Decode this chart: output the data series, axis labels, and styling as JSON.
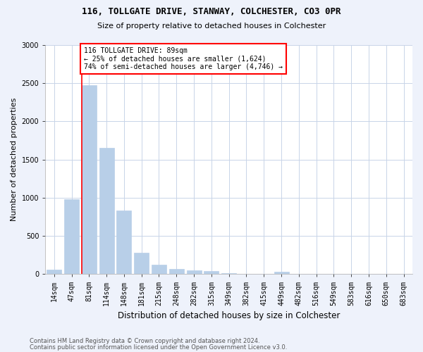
{
  "title1": "116, TOLLGATE DRIVE, STANWAY, COLCHESTER, CO3 0PR",
  "title2": "Size of property relative to detached houses in Colchester",
  "xlabel": "Distribution of detached houses by size in Colchester",
  "ylabel": "Number of detached properties",
  "categories": [
    "14sqm",
    "47sqm",
    "81sqm",
    "114sqm",
    "148sqm",
    "181sqm",
    "215sqm",
    "248sqm",
    "282sqm",
    "315sqm",
    "349sqm",
    "382sqm",
    "415sqm",
    "449sqm",
    "482sqm",
    "516sqm",
    "549sqm",
    "583sqm",
    "616sqm",
    "650sqm",
    "683sqm"
  ],
  "values": [
    60,
    980,
    2470,
    1650,
    830,
    280,
    125,
    65,
    50,
    40,
    10,
    0,
    0,
    30,
    0,
    0,
    0,
    0,
    0,
    0,
    0
  ],
  "bar_color": "#b8cfe8",
  "bar_edgecolor": "#b8cfe8",
  "highlight_index": 2,
  "annotation_line1": "116 TOLLGATE DRIVE: 89sqm",
  "annotation_line2": "← 25% of detached houses are smaller (1,624)",
  "annotation_line3": "74% of semi-detached houses are larger (4,746) →",
  "annotation_box_color": "white",
  "annotation_box_edgecolor": "red",
  "ylim": [
    0,
    3000
  ],
  "yticks": [
    0,
    500,
    1000,
    1500,
    2000,
    2500,
    3000
  ],
  "footer1": "Contains HM Land Registry data © Crown copyright and database right 2024.",
  "footer2": "Contains public sector information licensed under the Open Government Licence v3.0.",
  "background_color": "#eef2fb",
  "plot_background": "white",
  "grid_color": "#c8d4e8",
  "title1_fontsize": 9,
  "title2_fontsize": 8,
  "ylabel_fontsize": 8,
  "xlabel_fontsize": 8.5,
  "tick_fontsize": 7,
  "annotation_fontsize": 7,
  "footer_fontsize": 6
}
